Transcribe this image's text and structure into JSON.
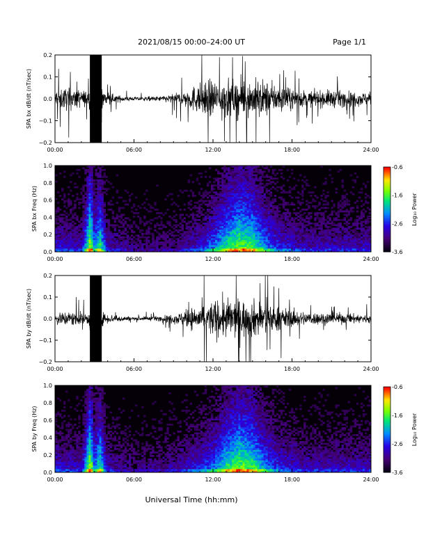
{
  "header": {
    "date_range": "2021/08/15  00:00–24:00 UT",
    "page": "Page 1/1"
  },
  "x_axis": {
    "label": "Universal Time (hh:mm)",
    "ticks": [
      "00:00",
      "06:00",
      "12:00",
      "18:00",
      "24:00"
    ]
  },
  "colorbar": {
    "label": "Log₁₀ Power",
    "ticks": [
      "-0.6",
      "-1.6",
      "-2.6",
      "-3.6"
    ]
  },
  "chart_data": [
    {
      "type": "line",
      "title": "",
      "ylabel": "SPA bx dB/dt (nT/sec)",
      "xlabel": "Universal Time (hh:mm)",
      "xlim": [
        0,
        24
      ],
      "ylim": [
        -0.2,
        0.2
      ],
      "y_ticks": [
        "0.2",
        "0.1",
        "0.0",
        "−0.1",
        "−0.2"
      ],
      "series": [
        {
          "x_hours": [
            0,
            1,
            2,
            2.6,
            2.7,
            3.5,
            3.6,
            4.5,
            6,
            8,
            9.5,
            10.5,
            11.5,
            12.5,
            13.5,
            14.5,
            15.5,
            16.5,
            18,
            19.5,
            21,
            22.5,
            24
          ],
          "amplitude": [
            0.08,
            0.09,
            0.07,
            0.06,
            0.22,
            0.22,
            0.07,
            0.03,
            0.015,
            0.02,
            0.05,
            0.1,
            0.14,
            0.16,
            0.15,
            0.14,
            0.16,
            0.12,
            0.08,
            0.06,
            0.07,
            0.06,
            0.05
          ]
        }
      ]
    },
    {
      "type": "heatmap",
      "title": "",
      "ylabel": "SPA bx Freq (Hz)",
      "xlim": [
        0,
        24
      ],
      "ylim": [
        0,
        1.0
      ],
      "y_ticks": [
        "1.0",
        "0.8",
        "0.6",
        "0.4",
        "0.2",
        "0.0"
      ],
      "zlim": [
        -3.6,
        -0.6
      ],
      "zlabel": "Log₁₀ Power",
      "activity_hours": [
        0,
        2,
        2.7,
        3.0,
        3.4,
        4,
        6,
        9,
        11,
        12,
        13,
        14,
        15,
        16,
        17,
        19,
        24
      ],
      "activity_level": [
        0.35,
        0.3,
        0.9,
        0.5,
        0.75,
        0.3,
        0.2,
        0.2,
        0.35,
        0.5,
        0.7,
        0.8,
        0.75,
        0.55,
        0.4,
        0.3,
        0.3
      ]
    },
    {
      "type": "line",
      "title": "",
      "ylabel": "SPA by dB/dt (nT/sec)",
      "xlabel": "Universal Time (hh:mm)",
      "xlim": [
        0,
        24
      ],
      "ylim": [
        -0.2,
        0.2
      ],
      "y_ticks": [
        "0.2",
        "0.1",
        "0.0",
        "−0.1",
        "−0.2"
      ],
      "series": [
        {
          "x_hours": [
            0,
            1,
            2,
            2.6,
            2.7,
            3.5,
            3.6,
            4.5,
            6,
            8,
            9.5,
            10.5,
            11.5,
            12.5,
            13.5,
            14.5,
            15.5,
            16.5,
            18,
            19.5,
            21,
            22.5,
            24
          ],
          "amplitude": [
            0.05,
            0.06,
            0.05,
            0.05,
            0.22,
            0.22,
            0.05,
            0.03,
            0.015,
            0.02,
            0.05,
            0.09,
            0.13,
            0.16,
            0.16,
            0.15,
            0.15,
            0.11,
            0.07,
            0.05,
            0.05,
            0.04,
            0.035
          ]
        }
      ]
    },
    {
      "type": "heatmap",
      "title": "",
      "ylabel": "SPA by Freq (Hz)",
      "xlim": [
        0,
        24
      ],
      "ylim": [
        0,
        1.0
      ],
      "y_ticks": [
        "1.0",
        "0.8",
        "0.6",
        "0.4",
        "0.2",
        "0.0"
      ],
      "zlim": [
        -3.6,
        -0.6
      ],
      "zlabel": "Log₁₀ Power",
      "activity_hours": [
        0,
        2,
        2.7,
        3.0,
        3.4,
        4,
        6,
        9,
        11,
        12,
        13,
        14,
        15,
        16,
        17,
        19,
        24
      ],
      "activity_level": [
        0.35,
        0.3,
        0.9,
        0.5,
        0.75,
        0.3,
        0.2,
        0.25,
        0.4,
        0.5,
        0.7,
        0.8,
        0.75,
        0.55,
        0.4,
        0.3,
        0.3
      ]
    }
  ]
}
